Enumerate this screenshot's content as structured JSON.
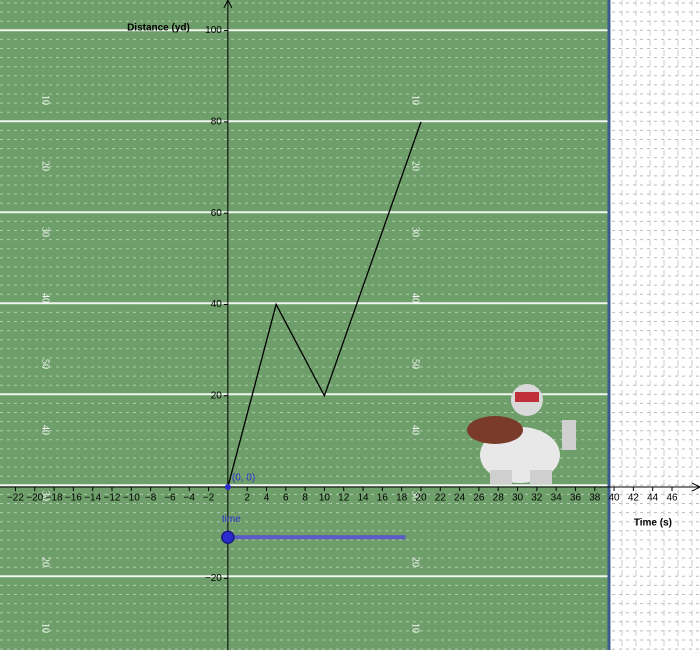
{
  "chart_data": {
    "type": "line",
    "x_label": "Time (s)",
    "y_label": "Distance (yd)",
    "x": [
      0,
      5,
      10,
      20
    ],
    "values": [
      0,
      40,
      20,
      80
    ],
    "color": "#000000",
    "xlim": [
      -23.6,
      48.9
    ],
    "ylim": [
      -35.7,
      106.7
    ],
    "xticks": [
      {
        "value": -22,
        "label": "−22"
      },
      {
        "value": -20,
        "label": "−20"
      },
      {
        "value": -18,
        "label": "−18"
      },
      {
        "value": -16,
        "label": "−16"
      },
      {
        "value": -14,
        "label": "−14"
      },
      {
        "value": -12,
        "label": "−12"
      },
      {
        "value": -10,
        "label": "−10"
      },
      {
        "value": -8,
        "label": "−8"
      },
      {
        "value": -6,
        "label": "−6"
      },
      {
        "value": -4,
        "label": "−4"
      },
      {
        "value": -2,
        "label": "−2"
      },
      2,
      4,
      6,
      8,
      10,
      12,
      14,
      16,
      18,
      20,
      22,
      24,
      26,
      28,
      30,
      32,
      34,
      36,
      38,
      40,
      42,
      44,
      46
    ],
    "yticks": [
      {
        "value": -20,
        "label": "−20"
      },
      20,
      40,
      60,
      80,
      100
    ],
    "origin_label": "(0, 0)",
    "slider": {
      "label": "time",
      "min": 0,
      "max": 18.4,
      "value": 0
    }
  },
  "field": {
    "numbers": [
      "10",
      "20",
      "30",
      "40",
      "50",
      "40",
      "30",
      "20",
      "10"
    ]
  }
}
